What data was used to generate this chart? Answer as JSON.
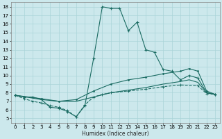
{
  "xlabel": "Humidex (Indice chaleur)",
  "bg_color": "#cce8ec",
  "line_color": "#1a6b62",
  "grid_color": "#aad4d8",
  "xlim": [
    -0.5,
    23.5
  ],
  "ylim": [
    4.5,
    18.5
  ],
  "xticks": [
    0,
    1,
    2,
    3,
    4,
    5,
    6,
    7,
    8,
    9,
    10,
    11,
    12,
    13,
    14,
    15,
    16,
    17,
    18,
    19,
    20,
    21,
    22,
    23
  ],
  "yticks": [
    5,
    6,
    7,
    8,
    9,
    10,
    11,
    12,
    13,
    14,
    15,
    16,
    17,
    18
  ],
  "series1": [
    [
      0,
      7.7
    ],
    [
      1,
      7.5
    ],
    [
      2,
      7.5
    ],
    [
      3,
      7.2
    ],
    [
      4,
      6.3
    ],
    [
      5,
      6.2
    ],
    [
      6,
      5.8
    ],
    [
      7,
      5.2
    ],
    [
      8,
      6.5
    ],
    [
      9,
      12.0
    ],
    [
      10,
      18.0
    ],
    [
      11,
      17.8
    ],
    [
      12,
      17.8
    ],
    [
      13,
      15.2
    ],
    [
      14,
      16.2
    ],
    [
      15,
      13.0
    ],
    [
      16,
      12.7
    ],
    [
      17,
      10.7
    ],
    [
      18,
      10.5
    ],
    [
      19,
      9.5
    ],
    [
      20,
      10.0
    ],
    [
      21,
      9.7
    ],
    [
      22,
      8.0
    ],
    [
      23,
      7.8
    ]
  ],
  "series2": [
    [
      0,
      7.7
    ],
    [
      3,
      7.3
    ],
    [
      5,
      7.0
    ],
    [
      7,
      7.2
    ],
    [
      9,
      8.2
    ],
    [
      11,
      9.0
    ],
    [
      13,
      9.5
    ],
    [
      15,
      9.8
    ],
    [
      17,
      10.2
    ],
    [
      19,
      10.5
    ],
    [
      20,
      10.8
    ],
    [
      21,
      10.5
    ],
    [
      22,
      8.2
    ],
    [
      23,
      7.8
    ]
  ],
  "series3": [
    [
      0,
      7.7
    ],
    [
      3,
      7.2
    ],
    [
      5,
      7.0
    ],
    [
      7,
      7.0
    ],
    [
      9,
      7.5
    ],
    [
      11,
      8.0
    ],
    [
      13,
      8.3
    ],
    [
      15,
      8.6
    ],
    [
      17,
      9.0
    ],
    [
      19,
      9.3
    ],
    [
      20,
      9.5
    ],
    [
      21,
      9.2
    ],
    [
      22,
      8.0
    ],
    [
      23,
      7.8
    ]
  ],
  "series4": [
    [
      0,
      7.7
    ],
    [
      1,
      7.3
    ],
    [
      2,
      7.0
    ],
    [
      3,
      6.8
    ],
    [
      4,
      6.5
    ],
    [
      5,
      6.3
    ],
    [
      6,
      5.9
    ],
    [
      7,
      5.2
    ],
    [
      8,
      6.6
    ],
    [
      9,
      7.5
    ],
    [
      10,
      7.8
    ],
    [
      11,
      8.0
    ],
    [
      13,
      8.2
    ],
    [
      15,
      8.4
    ],
    [
      17,
      8.7
    ],
    [
      19,
      8.9
    ],
    [
      21,
      8.8
    ],
    [
      22,
      7.9
    ],
    [
      23,
      7.8
    ]
  ]
}
